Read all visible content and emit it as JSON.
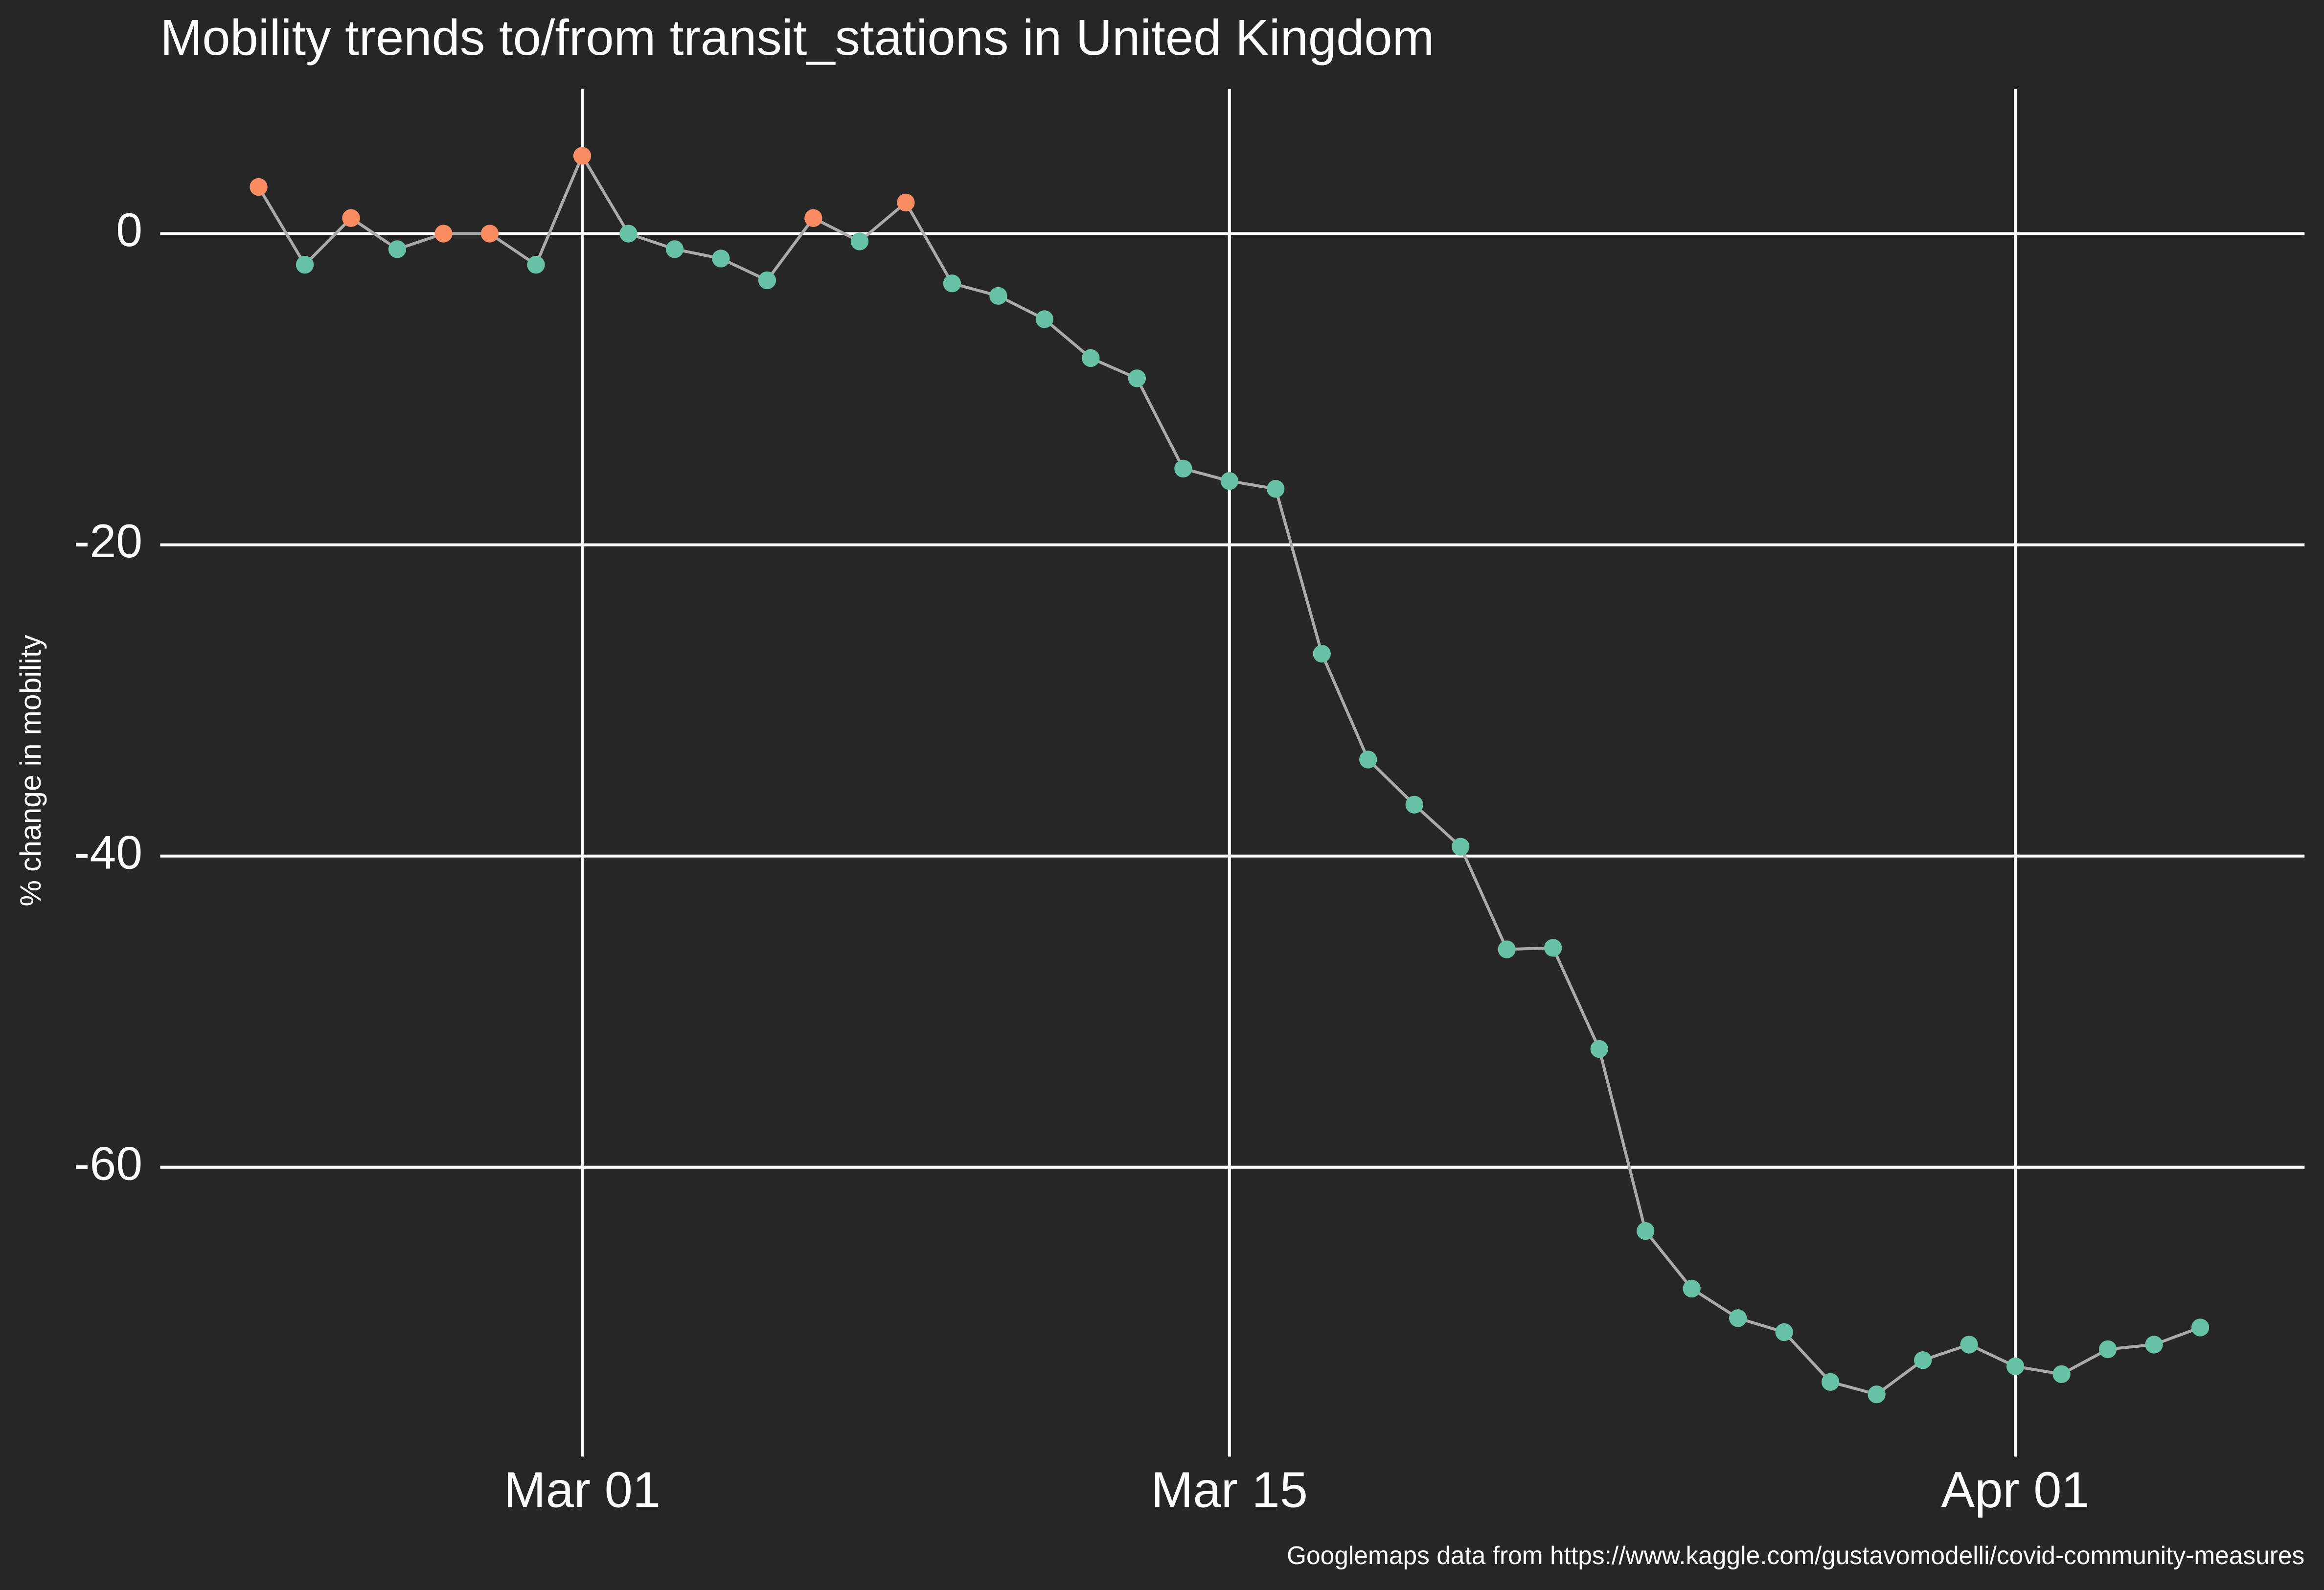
{
  "chart_data": {
    "type": "line",
    "title": "Mobility trends to/from transit_stations in United Kingdom",
    "y_label": "% change in mobility",
    "caption": "Googlemaps data from https://www.kaggle.com/gustavomodelli/covid-community-measures",
    "x": [
      "02-23",
      "02-24",
      "02-25",
      "02-26",
      "02-27",
      "02-28",
      "02-29",
      "03-01",
      "03-02",
      "03-03",
      "03-04",
      "03-05",
      "03-06",
      "03-07",
      "03-08",
      "03-09",
      "03-10",
      "03-11",
      "03-12",
      "03-13",
      "03-14",
      "03-15",
      "03-16",
      "03-17",
      "03-18",
      "03-19",
      "03-20",
      "03-21",
      "03-22",
      "03-23",
      "03-24",
      "03-25",
      "03-26",
      "03-27",
      "03-28",
      "03-29",
      "03-30",
      "03-31",
      "04-01",
      "04-02",
      "04-03",
      "04-04",
      "04-05"
    ],
    "values": [
      3,
      -2,
      1,
      -1,
      0,
      0,
      -2,
      5,
      0,
      -1,
      -1.6,
      -3,
      1,
      -0.5,
      2,
      -3.2,
      -4,
      -5.5,
      -8,
      -9.3,
      -15.1,
      -15.9,
      -16.4,
      -27,
      -33.8,
      -36.7,
      -39.4,
      -46,
      -45.9,
      -52.4,
      -64.1,
      -67.8,
      -69.7,
      -70.6,
      -73.8,
      -74.6,
      -72.4,
      -71.4,
      -72.8,
      -73.3,
      -71.7,
      -71.4,
      -70.3
    ],
    "point_colors": [
      "#fc8d62",
      "#66c2a5",
      "#fc8d62",
      "#66c2a5",
      "#fc8d62",
      "#fc8d62",
      "#66c2a5",
      "#fc8d62",
      "#66c2a5",
      "#66c2a5",
      "#66c2a5",
      "#66c2a5",
      "#fc8d62",
      "#66c2a5",
      "#fc8d62",
      "#66c2a5",
      "#66c2a5",
      "#66c2a5",
      "#66c2a5",
      "#66c2a5",
      "#66c2a5",
      "#66c2a5",
      "#66c2a5",
      "#66c2a5",
      "#66c2a5",
      "#66c2a5",
      "#66c2a5",
      "#66c2a5",
      "#66c2a5",
      "#66c2a5",
      "#66c2a5",
      "#66c2a5",
      "#66c2a5",
      "#66c2a5",
      "#66c2a5",
      "#66c2a5",
      "#66c2a5",
      "#66c2a5",
      "#66c2a5",
      "#66c2a5",
      "#66c2a5",
      "#66c2a5",
      "#66c2a5"
    ],
    "line_color": "#aaaaaa",
    "xlim": [
      "02-21",
      "04-07"
    ],
    "ylim": [
      -78.6,
      9.3
    ],
    "xticks": [
      {
        "value": "03-01",
        "label": "Mar 01"
      },
      {
        "value": "03-15",
        "label": "Mar 15"
      },
      {
        "value": "04-01",
        "label": "Apr 01"
      }
    ],
    "yticks": [
      0,
      -20,
      -40,
      -60
    ],
    "grid": true
  }
}
